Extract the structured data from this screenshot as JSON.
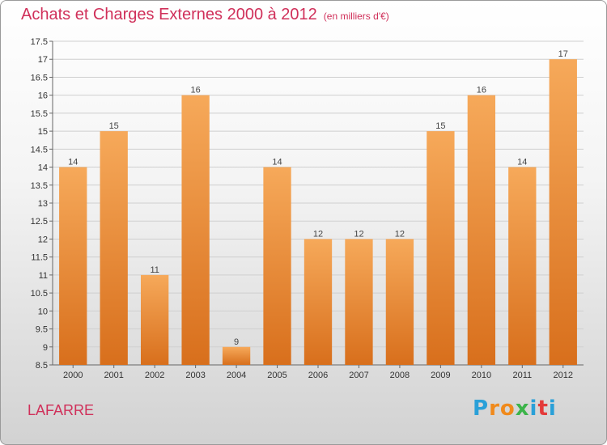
{
  "header": {
    "title": "Achats et Charges Externes 2000 à 2012",
    "subtitle": "(en milliers d'€)"
  },
  "footer": {
    "place": "LAFARRE",
    "brand": [
      "P",
      "r",
      "o",
      "x",
      "i",
      "t",
      "i"
    ],
    "brand_colors": [
      "#2aa0d8",
      "#f08a1c",
      "#f08a1c",
      "#3cb44a",
      "#2aa0d8",
      "#e43a3a",
      "#2aa0d8"
    ]
  },
  "chart_data": {
    "type": "bar",
    "categories": [
      "2000",
      "2001",
      "2002",
      "2003",
      "2004",
      "2005",
      "2006",
      "2007",
      "2008",
      "2009",
      "2010",
      "2011",
      "2012"
    ],
    "values": [
      14,
      15,
      11,
      16,
      9,
      14,
      12,
      12,
      12,
      15,
      16,
      14,
      17
    ],
    "labels": [
      "14",
      "15",
      "11",
      "16",
      "9",
      "14",
      "12",
      "12",
      "12",
      "15",
      "16",
      "14",
      "17"
    ],
    "ylim": [
      8.5,
      17.5
    ],
    "yticks": [
      "8.5",
      "9",
      "9.5",
      "10",
      "10.5",
      "11",
      "11.5",
      "12",
      "12.5",
      "13",
      "13.5",
      "14",
      "14.5",
      "15",
      "15.5",
      "16",
      "16.5",
      "17",
      "17.5"
    ],
    "grid": true,
    "bar_color": "#f0a050"
  }
}
